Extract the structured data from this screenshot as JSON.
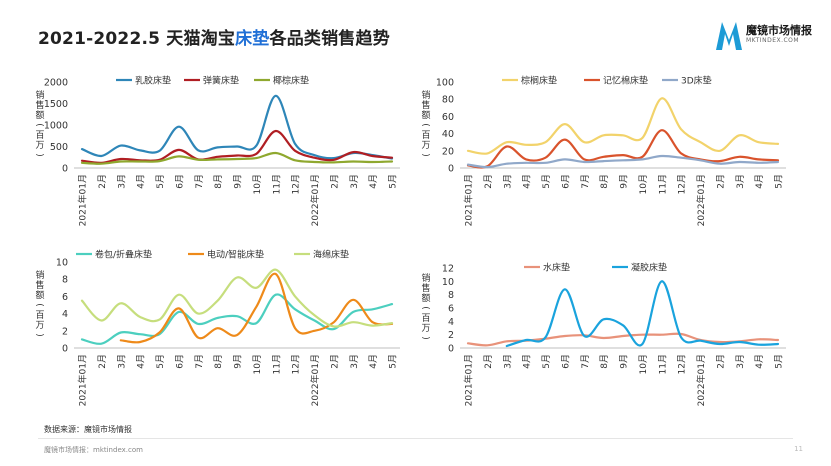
{
  "page": {
    "title_pre": "2021-2022.5 天猫淘宝",
    "title_hl": "床垫",
    "title_post": "各品类销售趋势",
    "logo_name": "魔镜市场情报",
    "logo_url": "MKTINDEX.COM",
    "source": "数据来源：魔镜市场情报",
    "footer": "魔镜市场情报：mktindex.com",
    "page_number": "11"
  },
  "chart_data": [
    {
      "type": "line",
      "ylabel": "销售额（百万）",
      "ylim": [
        0,
        2000
      ],
      "yticks": [
        0,
        500,
        1000,
        1500,
        2000
      ],
      "categories": [
        "2021年01月",
        "2月",
        "3月",
        "4月",
        "5月",
        "6月",
        "7月",
        "8月",
        "9月",
        "10月",
        "11月",
        "12月",
        "2022年01月",
        "2月",
        "3月",
        "4月",
        "5月"
      ],
      "series": [
        {
          "name": "乳胶床垫",
          "color": "#2e86b8",
          "values": [
            440,
            280,
            520,
            410,
            400,
            960,
            410,
            480,
            500,
            520,
            1680,
            560,
            300,
            230,
            350,
            300,
            220
          ]
        },
        {
          "name": "弹簧床垫",
          "color": "#b01e23",
          "values": [
            170,
            120,
            210,
            180,
            190,
            420,
            200,
            260,
            290,
            330,
            860,
            400,
            240,
            190,
            370,
            280,
            240
          ]
        },
        {
          "name": "椰棕床垫",
          "color": "#8fa82f",
          "values": [
            120,
            100,
            150,
            150,
            160,
            270,
            190,
            200,
            210,
            230,
            350,
            180,
            140,
            130,
            150,
            140,
            150
          ]
        }
      ]
    },
    {
      "type": "line",
      "ylabel": "销售额（百万）",
      "ylim": [
        0,
        100
      ],
      "yticks": [
        0,
        20,
        40,
        60,
        80,
        100
      ],
      "categories": [
        "2021年01月",
        "2月",
        "3月",
        "4月",
        "5月",
        "6月",
        "7月",
        "8月",
        "9月",
        "10月",
        "11月",
        "12月",
        "2022年01月",
        "2月",
        "3月",
        "4月",
        "5月"
      ],
      "series": [
        {
          "name": "棕榈床垫",
          "color": "#f2d36b",
          "values": [
            20,
            17,
            30,
            27,
            30,
            51,
            30,
            38,
            38,
            35,
            81,
            45,
            30,
            20,
            38,
            30,
            28
          ]
        },
        {
          "name": "记忆棉床垫",
          "color": "#d9532c",
          "values": [
            3,
            2,
            25,
            10,
            12,
            33,
            10,
            13,
            15,
            13,
            44,
            17,
            10,
            8,
            13,
            10,
            9
          ]
        },
        {
          "name": "3D床垫",
          "color": "#90a8c9",
          "values": [
            4,
            1,
            5,
            6,
            6,
            10,
            7,
            8,
            9,
            10,
            14,
            12,
            9,
            5,
            7,
            6,
            7
          ]
        }
      ]
    },
    {
      "type": "line",
      "ylabel": "销售额（百万）",
      "ylim": [
        0,
        10
      ],
      "yticks": [
        0,
        2,
        4,
        6,
        8,
        10
      ],
      "categories": [
        "2021年01月",
        "2月",
        "3月",
        "4月",
        "5月",
        "6月",
        "7月",
        "8月",
        "9月",
        "10月",
        "11月",
        "12月",
        "2022年01月",
        "2月",
        "3月",
        "4月",
        "5月"
      ],
      "series": [
        {
          "name": "卷包/折叠床垫",
          "color": "#4ccfbf",
          "values": [
            1.0,
            0.5,
            1.8,
            1.6,
            1.6,
            4.2,
            2.8,
            3.5,
            3.7,
            2.9,
            6.2,
            4.5,
            3.2,
            2.2,
            4.2,
            4.5,
            5.1
          ]
        },
        {
          "name": "电动/智能床垫",
          "color": "#ee8a1a",
          "values": [
            null,
            null,
            0.9,
            0.7,
            1.8,
            4.6,
            1.2,
            2.3,
            1.5,
            4.8,
            8.6,
            2.3,
            2.0,
            3.0,
            5.6,
            3.0,
            2.8
          ]
        },
        {
          "name": "海绵床垫",
          "color": "#c6de7d",
          "values": [
            5.5,
            3.2,
            5.2,
            3.6,
            3.3,
            6.2,
            4.0,
            5.5,
            8.2,
            7.0,
            9.1,
            6.0,
            3.8,
            2.5,
            3.0,
            2.6,
            2.9
          ]
        }
      ]
    },
    {
      "type": "line",
      "ylabel": "销售额（百万）",
      "ylim": [
        0,
        12
      ],
      "yticks": [
        0,
        2,
        4,
        6,
        8,
        10,
        12
      ],
      "categories": [
        "2021年01月",
        "2月",
        "3月",
        "4月",
        "5月",
        "6月",
        "7月",
        "8月",
        "9月",
        "10月",
        "11月",
        "12月",
        "2022年01月",
        "2月",
        "3月",
        "4月",
        "5月"
      ],
      "series": [
        {
          "name": "水床垫",
          "color": "#e8927a",
          "values": [
            0.7,
            0.4,
            1.0,
            1.1,
            1.4,
            1.8,
            1.9,
            1.5,
            1.8,
            2.0,
            2.0,
            2.1,
            1.2,
            0.9,
            1.0,
            1.3,
            1.2
          ]
        },
        {
          "name": "凝胶床垫",
          "color": "#1aa3dd",
          "values": [
            null,
            null,
            0.3,
            1.2,
            1.6,
            8.8,
            1.8,
            4.3,
            3.4,
            0.6,
            10.0,
            1.6,
            1.1,
            0.6,
            0.9,
            0.5,
            0.6
          ]
        }
      ]
    }
  ]
}
